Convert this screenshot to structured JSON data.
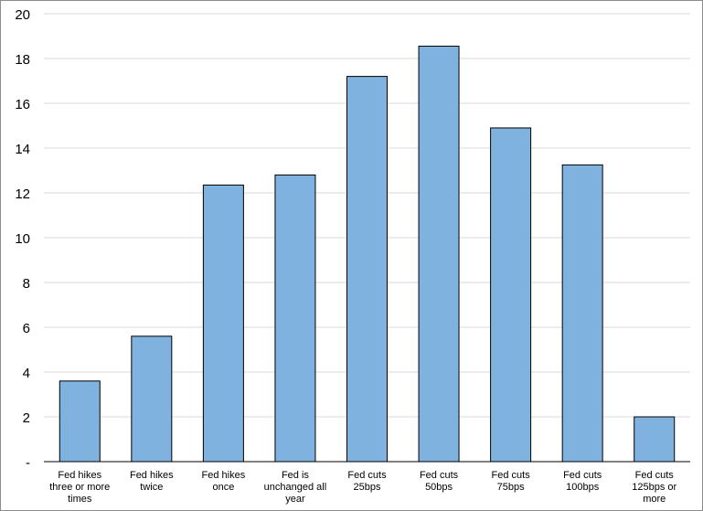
{
  "chart_data": {
    "type": "bar",
    "categories": [
      [
        "Fed hikes",
        "three or more",
        "times"
      ],
      [
        "Fed hikes",
        "twice"
      ],
      [
        "Fed hikes",
        "once"
      ],
      [
        "Fed is",
        "unchanged all",
        "year"
      ],
      [
        "Fed cuts",
        "25bps"
      ],
      [
        "Fed cuts",
        "50bps"
      ],
      [
        "Fed cuts",
        "75bps"
      ],
      [
        "Fed cuts",
        "100bps"
      ],
      [
        "Fed cuts",
        "125bps or",
        "more"
      ]
    ],
    "values": [
      3.6,
      5.6,
      12.35,
      12.8,
      17.2,
      18.55,
      14.9,
      13.25,
      2.0
    ],
    "ylim": [
      0,
      20
    ],
    "yticks": [
      0,
      2,
      4,
      6,
      8,
      10,
      12,
      14,
      16,
      18,
      20
    ],
    "ytick_labels": [
      "-",
      "2",
      "4",
      "6",
      "8",
      "10",
      "12",
      "14",
      "16",
      "18",
      "20"
    ],
    "grid": true,
    "bar_color": "#7fb2de",
    "title": "",
    "xlabel": "",
    "ylabel": ""
  }
}
